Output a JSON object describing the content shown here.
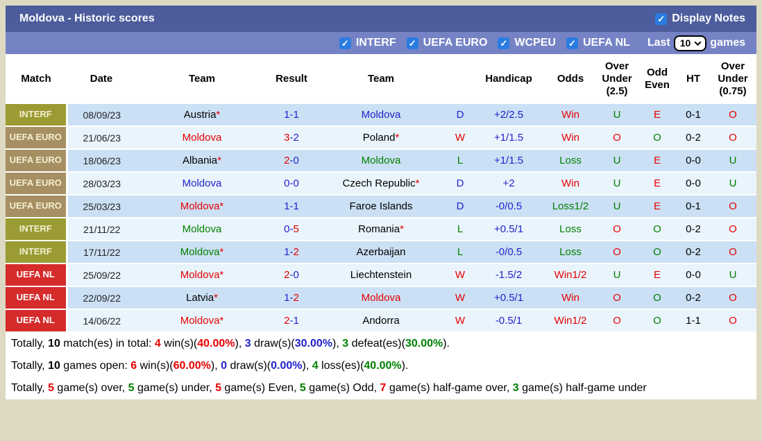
{
  "title_bar": {
    "title": "Moldova - Historic scores",
    "display_notes_label": "Display Notes"
  },
  "filter_bar": {
    "competitions": [
      "INTERF",
      "UEFA EURO",
      "WCPEU",
      "UEFA NL"
    ],
    "last_label": "Last",
    "last_value": "10",
    "games_label": "games"
  },
  "icons": {
    "check": "✓",
    "chevron_down": "v"
  },
  "colors": {
    "title_bar_bg": "#4d5c9c",
    "filter_bar_bg": "#7583c5",
    "checkbox_blue": "#2b7ce0",
    "frame_bg": "#ded9c3",
    "row_odd_bg": "#cbe0f4",
    "row_even_bg": "#e9f4fc",
    "interf_badge_bg": "#9a9b33",
    "uefa_euro_badge_bg": "#a68f62",
    "uefa_nl_badge_bg": "#d52b2b",
    "win_red": "#e60000",
    "loss_green": "#008000",
    "draw_blue": "#2222cc"
  },
  "table": {
    "result_sep": "-",
    "headers": [
      "Match",
      "Date",
      "Team",
      "Result",
      "Team",
      "",
      "Handicap",
      "Odds",
      "Over Under (2.5)",
      "Odd Even",
      "HT",
      "Over Under (0.75)"
    ],
    "rows": [
      {
        "lg": "INTERF",
        "lg_cls": "interf",
        "date": "08/09/23",
        "t1": "Austria",
        "t1s": "*",
        "t1_cls": "k",
        "s1": "1",
        "s1c": "b",
        "s2": "1",
        "s2c": "b",
        "t2": "Moldova",
        "t2s": "",
        "t2_cls": "b",
        "wdl": "D",
        "wdlc": "b",
        "hc": "+2/2.5",
        "odds": "Win",
        "oddsc": "r",
        "ou25": "U",
        "ou25c": "g",
        "oe": "E",
        "oec": "r",
        "ht": "0-1",
        "ou075": "O",
        "ou075c": "r"
      },
      {
        "lg": "UEFA EURO",
        "lg_cls": "euro",
        "date": "21/06/23",
        "t1": "Moldova",
        "t1s": "",
        "t1_cls": "r",
        "s1": "3",
        "s1c": "r",
        "s2": "2",
        "s2c": "b",
        "t2": "Poland",
        "t2s": "*",
        "t2_cls": "k",
        "wdl": "W",
        "wdlc": "r",
        "hc": "+1/1.5",
        "odds": "Win",
        "oddsc": "r",
        "ou25": "O",
        "ou25c": "r",
        "oe": "O",
        "oec": "g",
        "ht": "0-2",
        "ou075": "O",
        "ou075c": "r"
      },
      {
        "lg": "UEFA EURO",
        "lg_cls": "euro",
        "date": "18/06/23",
        "t1": "Albania",
        "t1s": "*",
        "t1_cls": "k",
        "s1": "2",
        "s1c": "r",
        "s2": "0",
        "s2c": "b",
        "t2": "Moldova",
        "t2s": "",
        "t2_cls": "g",
        "wdl": "L",
        "wdlc": "g",
        "hc": "+1/1.5",
        "odds": "Loss",
        "oddsc": "g",
        "ou25": "U",
        "ou25c": "g",
        "oe": "E",
        "oec": "r",
        "ht": "0-0",
        "ou075": "U",
        "ou075c": "g"
      },
      {
        "lg": "UEFA EURO",
        "lg_cls": "euro",
        "date": "28/03/23",
        "t1": "Moldova",
        "t1s": "",
        "t1_cls": "b",
        "s1": "0",
        "s1c": "b",
        "s2": "0",
        "s2c": "b",
        "t2": "Czech Republic",
        "t2s": "*",
        "t2_cls": "k",
        "wdl": "D",
        "wdlc": "b",
        "hc": "+2",
        "odds": "Win",
        "oddsc": "r",
        "ou25": "U",
        "ou25c": "g",
        "oe": "E",
        "oec": "r",
        "ht": "0-0",
        "ou075": "U",
        "ou075c": "g"
      },
      {
        "lg": "UEFA EURO",
        "lg_cls": "euro",
        "date": "25/03/23",
        "t1": "Moldova",
        "t1s": "*",
        "t1_cls": "r",
        "s1": "1",
        "s1c": "b",
        "s2": "1",
        "s2c": "b",
        "t2": "Faroe Islands",
        "t2s": "",
        "t2_cls": "k",
        "wdl": "D",
        "wdlc": "b",
        "hc": "-0/0.5",
        "odds": "Loss1/2",
        "oddsc": "g",
        "ou25": "U",
        "ou25c": "g",
        "oe": "E",
        "oec": "r",
        "ht": "0-1",
        "ou075": "O",
        "ou075c": "r"
      },
      {
        "lg": "INTERF",
        "lg_cls": "interf",
        "date": "21/11/22",
        "t1": "Moldova",
        "t1s": "",
        "t1_cls": "g",
        "s1": "0",
        "s1c": "b",
        "s2": "5",
        "s2c": "r",
        "t2": "Romania",
        "t2s": "*",
        "t2_cls": "k",
        "wdl": "L",
        "wdlc": "g",
        "hc": "+0.5/1",
        "odds": "Loss",
        "oddsc": "g",
        "ou25": "O",
        "ou25c": "r",
        "oe": "O",
        "oec": "g",
        "ht": "0-2",
        "ou075": "O",
        "ou075c": "r"
      },
      {
        "lg": "INTERF",
        "lg_cls": "interf",
        "date": "17/11/22",
        "t1": "Moldova",
        "t1s": "*",
        "t1_cls": "g",
        "s1": "1",
        "s1c": "b",
        "s2": "2",
        "s2c": "r",
        "t2": "Azerbaijan",
        "t2s": "",
        "t2_cls": "k",
        "wdl": "L",
        "wdlc": "g",
        "hc": "-0/0.5",
        "odds": "Loss",
        "oddsc": "g",
        "ou25": "O",
        "ou25c": "r",
        "oe": "O",
        "oec": "g",
        "ht": "0-2",
        "ou075": "O",
        "ou075c": "r"
      },
      {
        "lg": "UEFA NL",
        "lg_cls": "nl",
        "date": "25/09/22",
        "t1": "Moldova",
        "t1s": "*",
        "t1_cls": "r",
        "s1": "2",
        "s1c": "r",
        "s2": "0",
        "s2c": "b",
        "t2": "Liechtenstein",
        "t2s": "",
        "t2_cls": "k",
        "wdl": "W",
        "wdlc": "r",
        "hc": "-1.5/2",
        "odds": "Win1/2",
        "oddsc": "r",
        "ou25": "U",
        "ou25c": "g",
        "oe": "E",
        "oec": "r",
        "ht": "0-0",
        "ou075": "U",
        "ou075c": "g"
      },
      {
        "lg": "UEFA NL",
        "lg_cls": "nl",
        "date": "22/09/22",
        "t1": "Latvia",
        "t1s": "*",
        "t1_cls": "k",
        "s1": "1",
        "s1c": "b",
        "s2": "2",
        "s2c": "r",
        "t2": "Moldova",
        "t2s": "",
        "t2_cls": "r",
        "wdl": "W",
        "wdlc": "r",
        "hc": "+0.5/1",
        "odds": "Win",
        "oddsc": "r",
        "ou25": "O",
        "ou25c": "r",
        "oe": "O",
        "oec": "g",
        "ht": "0-2",
        "ou075": "O",
        "ou075c": "r"
      },
      {
        "lg": "UEFA NL",
        "lg_cls": "nl",
        "date": "14/06/22",
        "t1": "Moldova",
        "t1s": "*",
        "t1_cls": "r",
        "s1": "2",
        "s1c": "r",
        "s2": "1",
        "s2c": "b",
        "t2": "Andorra",
        "t2s": "",
        "t2_cls": "k",
        "wdl": "W",
        "wdlc": "r",
        "hc": "-0.5/1",
        "odds": "Win1/2",
        "oddsc": "r",
        "ou25": "O",
        "ou25c": "r",
        "oe": "O",
        "oec": "g",
        "ht": "1-1",
        "ou075": "O",
        "ou075c": "r"
      }
    ]
  },
  "summary": [
    [
      {
        "t": "Totally, "
      },
      {
        "t": "10",
        "b": true
      },
      {
        "t": " match(es) in total: "
      },
      {
        "t": "4",
        "c": "r",
        "b": true
      },
      {
        "t": " win(s)("
      },
      {
        "t": "40.00%",
        "c": "r",
        "b": true
      },
      {
        "t": "), "
      },
      {
        "t": "3",
        "c": "b",
        "b": true
      },
      {
        "t": " draw(s)("
      },
      {
        "t": "30.00%",
        "c": "b",
        "b": true
      },
      {
        "t": "), "
      },
      {
        "t": "3",
        "c": "g",
        "b": true
      },
      {
        "t": " defeat(es)("
      },
      {
        "t": "30.00%",
        "c": "g",
        "b": true
      },
      {
        "t": ")."
      }
    ],
    [
      {
        "t": "Totally, "
      },
      {
        "t": "10",
        "b": true
      },
      {
        "t": " games open: "
      },
      {
        "t": "6",
        "c": "r",
        "b": true
      },
      {
        "t": " win(s)("
      },
      {
        "t": "60.00%",
        "c": "r",
        "b": true
      },
      {
        "t": "), "
      },
      {
        "t": "0",
        "c": "b",
        "b": true
      },
      {
        "t": " draw(s)("
      },
      {
        "t": "0.00%",
        "c": "b",
        "b": true
      },
      {
        "t": "), "
      },
      {
        "t": "4",
        "c": "g",
        "b": true
      },
      {
        "t": " loss(es)("
      },
      {
        "t": "40.00%",
        "c": "g",
        "b": true
      },
      {
        "t": ")."
      }
    ],
    [
      {
        "t": "Totally, "
      },
      {
        "t": "5",
        "c": "r",
        "b": true
      },
      {
        "t": " game(s) over, "
      },
      {
        "t": "5",
        "c": "g",
        "b": true
      },
      {
        "t": " game(s) under, "
      },
      {
        "t": "5",
        "c": "r",
        "b": true
      },
      {
        "t": " game(s) Even, "
      },
      {
        "t": "5",
        "c": "g",
        "b": true
      },
      {
        "t": " game(s) Odd, "
      },
      {
        "t": "7",
        "c": "r",
        "b": true
      },
      {
        "t": " game(s) half-game over, "
      },
      {
        "t": "3",
        "c": "g",
        "b": true
      },
      {
        "t": " game(s) half-game under"
      }
    ]
  ]
}
